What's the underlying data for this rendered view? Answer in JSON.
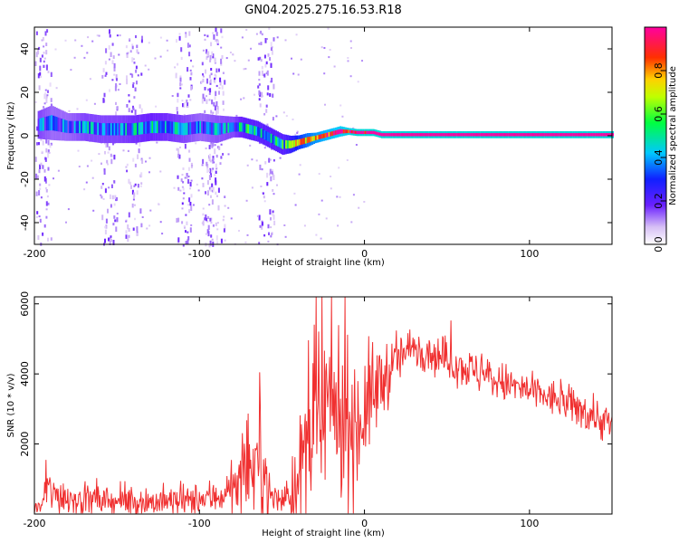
{
  "title": "GN04.2025.275.16.53.R18",
  "chart_data": [
    {
      "type": "heatmap",
      "name": "spectrogram",
      "xlabel": "Height of straight line (km)",
      "ylabel": "Frequency (Hz)",
      "xlim": [
        -200,
        150
      ],
      "ylim": [
        -50,
        50
      ],
      "x_ticks": [
        -200,
        -100,
        0,
        100
      ],
      "y_ticks": [
        -40,
        -20,
        0,
        20,
        40
      ],
      "colorbar": {
        "label": "Normalized spectral amplitude",
        "range": [
          0,
          1
        ],
        "ticks": [
          0.0,
          0.2,
          0.4,
          0.6,
          0.8
        ]
      },
      "ridge": {
        "x": [
          -198,
          -190,
          -180,
          -170,
          -160,
          -150,
          -140,
          -130,
          -120,
          -110,
          -100,
          -90,
          -80,
          -75,
          -70,
          -65,
          -60,
          -55,
          -50,
          -45,
          -40,
          -35,
          -30,
          -25,
          -20,
          -15,
          -10,
          -5,
          0,
          5,
          10,
          20,
          40,
          60,
          80,
          100,
          120,
          150
        ],
        "freq": [
          5,
          6,
          4,
          4,
          3,
          3,
          3,
          4,
          4,
          3,
          4,
          3,
          4,
          4,
          3,
          2,
          0,
          -2,
          -4,
          -4,
          -3,
          -2,
          -1,
          0,
          1,
          2,
          2,
          1.5,
          1.5,
          1.5,
          0.5,
          0.5,
          0.5,
          0.5,
          0.5,
          0.5,
          0.5,
          0.5
        ],
        "width": [
          4,
          5,
          4,
          4,
          4,
          4,
          4,
          4,
          4,
          4,
          4,
          4,
          3,
          3,
          3,
          3,
          3,
          3,
          3,
          2.5,
          2,
          2,
          1.5,
          1.5,
          1.5,
          1.5,
          1,
          1,
          1,
          1,
          1,
          1,
          1,
          1,
          1,
          1,
          1,
          1
        ],
        "amp": [
          0.35,
          0.3,
          0.3,
          0.35,
          0.35,
          0.35,
          0.38,
          0.4,
          0.38,
          0.35,
          0.3,
          0.33,
          0.35,
          0.4,
          0.45,
          0.45,
          0.45,
          0.45,
          0.45,
          0.55,
          0.7,
          0.8,
          0.85,
          0.9,
          0.92,
          0.95,
          0.97,
          1,
          1,
          1,
          1,
          1,
          1,
          1,
          1,
          1,
          1,
          1
        ]
      },
      "noise_bands_x": [
        [
          -200,
          -190
        ],
        [
          -160,
          -150
        ],
        [
          -145,
          -135
        ],
        [
          -115,
          -105
        ],
        [
          -100,
          -90
        ],
        [
          -95,
          -85
        ],
        [
          -65,
          -55
        ]
      ]
    },
    {
      "type": "line",
      "name": "snr",
      "xlabel": "Height of straight line (km)",
      "ylabel": "SNR (10 * v/v)",
      "xlim": [
        -200,
        150
      ],
      "ylim": [
        0,
        6200
      ],
      "x_ticks": [
        -200,
        -100,
        0,
        100
      ],
      "y_ticks": [
        2000,
        4000,
        6000
      ],
      "color": "#f03030",
      "envelope": {
        "x": [
          -200,
          -195,
          -193,
          -190,
          -170,
          -150,
          -130,
          -110,
          -100,
          -90,
          -80,
          -75,
          -70,
          -65,
          -62,
          -60,
          -57,
          -50,
          -45,
          -40,
          -35,
          -30,
          -25,
          -20,
          -15,
          -10,
          -5,
          0,
          10,
          20,
          30,
          40,
          60,
          80,
          100,
          120,
          140,
          150
        ],
        "mean": [
          150,
          250,
          800,
          600,
          400,
          350,
          350,
          350,
          400,
          500,
          700,
          900,
          1200,
          1500,
          1600,
          1000,
          500,
          400,
          600,
          900,
          1800,
          2600,
          2800,
          3000,
          2900,
          2700,
          2500,
          3000,
          3800,
          4400,
          4800,
          4600,
          4200,
          3800,
          3500,
          3200,
          2800,
          2500
        ],
        "spread": [
          150,
          250,
          700,
          500,
          400,
          350,
          400,
          400,
          400,
          450,
          600,
          800,
          1000,
          1200,
          1400,
          800,
          500,
          300,
          600,
          1200,
          2200,
          2600,
          2500,
          2200,
          2000,
          1800,
          1800,
          1500,
          1000,
          600,
          500,
          500,
          500,
          500,
          450,
          450,
          500,
          500
        ]
      }
    }
  ]
}
